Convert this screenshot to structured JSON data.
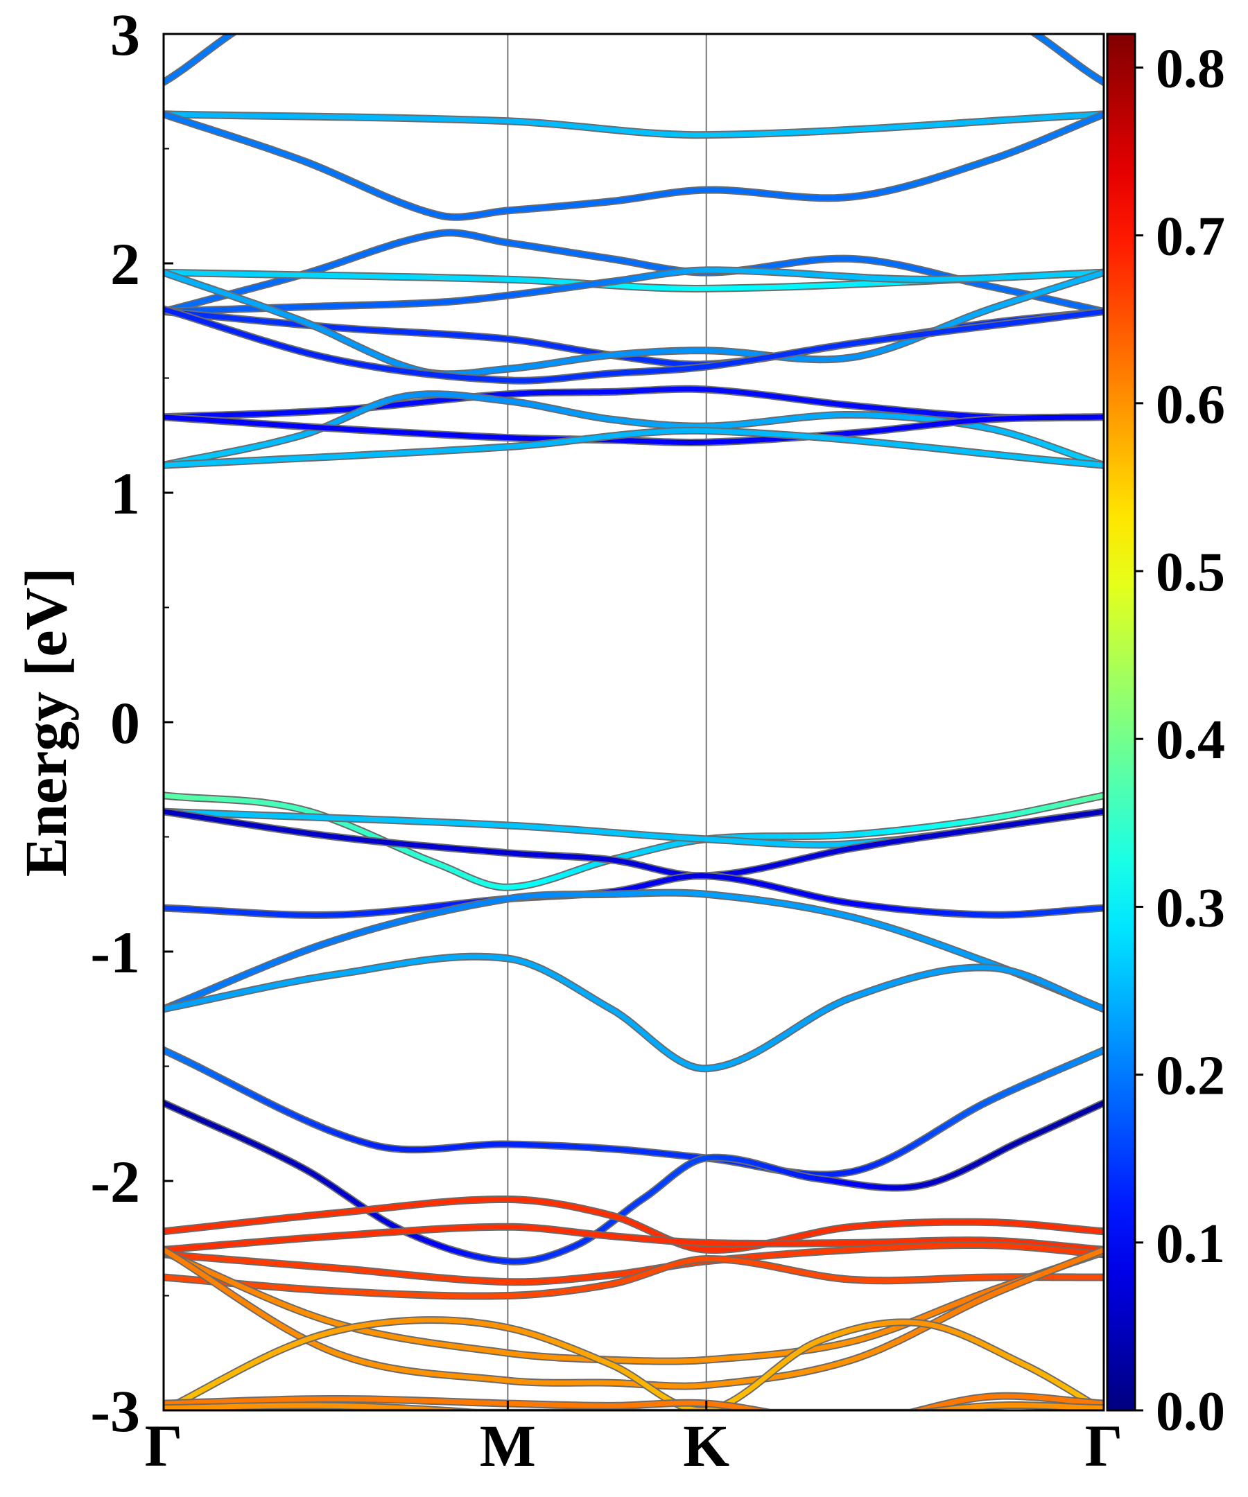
{
  "chart_data": {
    "type": "line",
    "title": "",
    "xlabel": "",
    "ylabel": "Energy [eV]",
    "ylim": [
      -3,
      3
    ],
    "x_path": [
      0,
      1,
      1.577,
      2.732
    ],
    "x_ticks": [
      {
        "x": 0,
        "label": "Γ"
      },
      {
        "x": 1,
        "label": "M"
      },
      {
        "x": 1.577,
        "label": "K"
      },
      {
        "x": 2.732,
        "label": "Γ"
      }
    ],
    "y_ticks": [
      {
        "v": 3,
        "label": "3"
      },
      {
        "v": 2,
        "label": "2"
      },
      {
        "v": 1,
        "label": "1"
      },
      {
        "v": 0,
        "label": "0"
      },
      {
        "v": -1,
        "label": "-1"
      },
      {
        "v": -2,
        "label": "-2"
      },
      {
        "v": -3,
        "label": "-3"
      }
    ],
    "y_minor_ticks": [
      2.5,
      1.5,
      0.5,
      -0.5,
      -1.5,
      -2.5
    ],
    "colorbar": {
      "colormap": "jet",
      "range": [
        0,
        0.82
      ],
      "ticks": [
        {
          "v": 0.0,
          "label": "0.0"
        },
        {
          "v": 0.1,
          "label": "0.1"
        },
        {
          "v": 0.2,
          "label": "0.2"
        },
        {
          "v": 0.3,
          "label": "0.3"
        },
        {
          "v": 0.4,
          "label": "0.4"
        },
        {
          "v": 0.5,
          "label": "0.5"
        },
        {
          "v": 0.6,
          "label": "0.6"
        },
        {
          "v": 0.7,
          "label": "0.7"
        },
        {
          "v": 0.8,
          "label": "0.8"
        }
      ]
    },
    "series": [
      {
        "k": [
          0,
          0.35,
          2.38,
          2.732
        ],
        "e": [
          2.79,
          3.1,
          3.1,
          2.79
        ],
        "w": [
          0.2,
          0.2,
          0.2,
          0.2
        ]
      },
      {
        "k": [
          0,
          1,
          1.577,
          2.732
        ],
        "e": [
          2.65,
          2.62,
          2.56,
          2.65
        ],
        "w": [
          0.25,
          0.25,
          0.26,
          0.25
        ]
      },
      {
        "k": [
          0,
          0.4,
          0.8,
          1,
          1.3,
          1.577,
          2.0,
          2.4,
          2.732
        ],
        "e": [
          2.65,
          2.45,
          2.21,
          2.23,
          2.27,
          2.32,
          2.29,
          2.45,
          2.65
        ],
        "w": [
          0.2,
          0.2,
          0.19,
          0.19,
          0.19,
          0.19,
          0.19,
          0.2,
          0.2
        ]
      },
      {
        "k": [
          0,
          0.4,
          0.8,
          1,
          1.3,
          1.577,
          2.0,
          2.4,
          2.732
        ],
        "e": [
          1.79,
          1.95,
          2.13,
          2.09,
          2.02,
          1.96,
          2.02,
          1.9,
          1.79
        ],
        "w": [
          0.19,
          0.19,
          0.19,
          0.19,
          0.19,
          0.19,
          0.19,
          0.19,
          0.19
        ]
      },
      {
        "k": [
          0,
          1,
          1.577,
          2.732
        ],
        "e": [
          1.96,
          1.93,
          1.89,
          1.96
        ],
        "w": [
          0.27,
          0.28,
          0.31,
          0.27
        ]
      },
      {
        "k": [
          0,
          0.4,
          0.8,
          1,
          1.3,
          1.577,
          2.2,
          2.732
        ],
        "e": [
          1.79,
          1.81,
          1.83,
          1.86,
          1.92,
          1.97,
          1.93,
          1.96
        ],
        "w": [
          0.18,
          0.18,
          0.18,
          0.18,
          0.2,
          0.24,
          0.26,
          0.27
        ]
      },
      {
        "k": [
          0,
          0.5,
          1,
          1.3,
          1.577,
          2.0,
          2.4,
          2.732
        ],
        "e": [
          1.79,
          1.72,
          1.67,
          1.6,
          1.56,
          1.65,
          1.74,
          1.79
        ],
        "w": [
          0.14,
          0.14,
          0.14,
          0.14,
          0.14,
          0.14,
          0.14,
          0.14
        ]
      },
      {
        "k": [
          0,
          0.4,
          0.75,
          1,
          1.3,
          1.577,
          2.0,
          2.4,
          2.732
        ],
        "e": [
          1.96,
          1.75,
          1.53,
          1.54,
          1.6,
          1.62,
          1.59,
          1.8,
          1.96
        ],
        "w": [
          0.25,
          0.23,
          0.22,
          0.22,
          0.22,
          0.22,
          0.22,
          0.24,
          0.25
        ]
      },
      {
        "k": [
          0,
          0.5,
          1,
          1.3,
          1.577,
          2.0,
          2.732
        ],
        "e": [
          1.8,
          1.58,
          1.49,
          1.52,
          1.55,
          1.65,
          1.79
        ],
        "w": [
          0.13,
          0.13,
          0.14,
          0.14,
          0.14,
          0.14,
          0.14
        ]
      },
      {
        "k": [
          0,
          0.5,
          1,
          1.3,
          1.577,
          2.0,
          2.4,
          2.732
        ],
        "e": [
          1.33,
          1.36,
          1.43,
          1.44,
          1.45,
          1.38,
          1.33,
          1.33
        ],
        "w": [
          0.11,
          0.11,
          0.11,
          0.11,
          0.11,
          0.11,
          0.11,
          0.11
        ]
      },
      {
        "k": [
          0,
          0.4,
          0.7,
          1,
          1.3,
          1.577,
          2.0,
          2.4,
          2.732
        ],
        "e": [
          1.12,
          1.25,
          1.42,
          1.4,
          1.32,
          1.29,
          1.34,
          1.28,
          1.12
        ],
        "w": [
          0.27,
          0.25,
          0.22,
          0.22,
          0.23,
          0.24,
          0.24,
          0.25,
          0.27
        ]
      },
      {
        "k": [
          0,
          0.5,
          1,
          1.3,
          1.577,
          2.0,
          2.4,
          2.732
        ],
        "e": [
          1.33,
          1.28,
          1.24,
          1.23,
          1.22,
          1.26,
          1.32,
          1.33
        ],
        "w": [
          0.1,
          0.1,
          0.1,
          0.1,
          0.1,
          0.1,
          0.1,
          0.1
        ]
      },
      {
        "k": [
          0,
          1,
          1.577,
          2.732
        ],
        "e": [
          1.12,
          1.2,
          1.27,
          1.12
        ],
        "w": [
          0.26,
          0.25,
          0.25,
          0.26
        ]
      },
      {
        "k": [
          0,
          0.4,
          0.8,
          1,
          1.3,
          1.577,
          2.0,
          2.4,
          2.732
        ],
        "e": [
          -0.32,
          -0.38,
          -0.62,
          -0.72,
          -0.6,
          -0.51,
          -0.49,
          -0.42,
          -0.32
        ],
        "w": [
          0.38,
          0.36,
          0.34,
          0.32,
          0.28,
          0.26,
          0.28,
          0.34,
          0.38
        ]
      },
      {
        "k": [
          0,
          1,
          1.577,
          2.0,
          2.732
        ],
        "e": [
          -0.39,
          -0.45,
          -0.51,
          -0.53,
          -0.39
        ],
        "w": [
          0.26,
          0.26,
          0.26,
          0.26,
          0.26
        ]
      },
      {
        "k": [
          0,
          0.5,
          1,
          1.3,
          1.577,
          2.0,
          2.4,
          2.732
        ],
        "e": [
          -0.39,
          -0.5,
          -0.57,
          -0.6,
          -0.67,
          -0.55,
          -0.46,
          -0.39
        ],
        "w": [
          0.05,
          0.06,
          0.07,
          0.07,
          0.08,
          0.07,
          0.06,
          0.05
        ]
      },
      {
        "k": [
          0,
          0.5,
          1,
          1.3,
          1.577,
          2.0,
          2.4,
          2.732
        ],
        "e": [
          -0.81,
          -0.84,
          -0.77,
          -0.74,
          -0.67,
          -0.79,
          -0.84,
          -0.81
        ],
        "w": [
          0.15,
          0.14,
          0.12,
          0.1,
          0.08,
          0.1,
          0.14,
          0.15
        ]
      },
      {
        "k": [
          0,
          0.5,
          1,
          1.3,
          1.577,
          2.0,
          2.4,
          2.732
        ],
        "e": [
          -1.25,
          -0.95,
          -0.77,
          -0.75,
          -0.75,
          -0.85,
          -1.05,
          -1.25
        ],
        "w": [
          0.2,
          0.2,
          0.21,
          0.22,
          0.23,
          0.23,
          0.23,
          0.22
        ]
      },
      {
        "k": [
          0,
          0.5,
          1,
          1.3,
          1.577,
          2.0,
          2.4,
          2.732
        ],
        "e": [
          -1.25,
          -1.1,
          -1.03,
          -1.25,
          -1.51,
          -1.2,
          -1.07,
          -1.25
        ],
        "w": [
          0.23,
          0.24,
          0.24,
          0.24,
          0.24,
          0.23,
          0.23,
          0.22
        ]
      },
      {
        "k": [
          0,
          0.6,
          1,
          1.3,
          1.577,
          2.0,
          2.4,
          2.732
        ],
        "e": [
          -1.43,
          -1.84,
          -1.84,
          -1.86,
          -1.9,
          -1.96,
          -1.65,
          -1.43
        ],
        "w": [
          0.2,
          0.13,
          0.13,
          0.14,
          0.14,
          0.13,
          0.18,
          0.22
        ]
      },
      {
        "k": [
          0,
          0.4,
          0.7,
          1,
          1.2,
          1.4,
          1.577,
          1.9,
          2.2,
          2.5,
          2.732
        ],
        "e": [
          -1.66,
          -1.94,
          -2.22,
          -2.35,
          -2.28,
          -2.07,
          -1.9,
          -1.99,
          -2.02,
          -1.82,
          -1.66
        ],
        "w": [
          0.03,
          0.05,
          0.08,
          0.14,
          0.14,
          0.15,
          0.16,
          0.12,
          0.06,
          0.04,
          0.03
        ]
      },
      {
        "k": [
          0,
          0.5,
          1,
          1.3,
          1.577,
          2.0,
          2.4,
          2.732
        ],
        "e": [
          -2.22,
          -2.14,
          -2.08,
          -2.15,
          -2.3,
          -2.2,
          -2.18,
          -2.22
        ],
        "w": [
          0.68,
          0.68,
          0.68,
          0.68,
          0.68,
          0.68,
          0.68,
          0.68
        ]
      },
      {
        "k": [
          0,
          0.5,
          1,
          1.3,
          1.577,
          2.0,
          2.4,
          2.732
        ],
        "e": [
          -2.3,
          -2.24,
          -2.2,
          -2.24,
          -2.27,
          -2.27,
          -2.26,
          -2.3
        ],
        "w": [
          0.68,
          0.68,
          0.68,
          0.68,
          0.68,
          0.68,
          0.68,
          0.68
        ]
      },
      {
        "k": [
          0,
          0.5,
          1,
          1.3,
          1.577,
          2.0,
          2.4,
          2.732
        ],
        "e": [
          -2.32,
          -2.38,
          -2.44,
          -2.41,
          -2.35,
          -2.3,
          -2.28,
          -2.32
        ],
        "w": [
          0.67,
          0.67,
          0.67,
          0.67,
          0.67,
          0.67,
          0.67,
          0.67
        ]
      },
      {
        "k": [
          0,
          0.5,
          1,
          1.3,
          1.577,
          2.0,
          2.4,
          2.732
        ],
        "e": [
          -2.42,
          -2.48,
          -2.5,
          -2.45,
          -2.34,
          -2.43,
          -2.42,
          -2.42
        ],
        "w": [
          0.66,
          0.66,
          0.66,
          0.66,
          0.66,
          0.66,
          0.66,
          0.66
        ]
      },
      {
        "k": [
          0,
          0.5,
          1,
          1.3,
          1.577,
          2.0,
          2.4,
          2.732
        ],
        "e": [
          -2.31,
          -2.62,
          -2.75,
          -2.78,
          -2.78,
          -2.7,
          -2.48,
          -2.31
        ],
        "w": [
          0.62,
          0.6,
          0.6,
          0.6,
          0.6,
          0.6,
          0.62,
          0.62
        ]
      },
      {
        "k": [
          0,
          0.5,
          1,
          1.3,
          1.577,
          2.0,
          2.4,
          2.732
        ],
        "e": [
          -2.3,
          -2.75,
          -2.87,
          -2.88,
          -2.89,
          -2.78,
          -2.5,
          -2.3
        ],
        "w": [
          0.62,
          0.6,
          0.6,
          0.6,
          0.6,
          0.6,
          0.62,
          0.62
        ]
      },
      {
        "k": [
          0,
          0.4,
          0.7,
          1,
          1.3,
          1.577,
          1.9,
          2.2,
          2.5,
          2.732
        ],
        "e": [
          -3.0,
          -2.7,
          -2.61,
          -2.64,
          -2.8,
          -3.0,
          -2.7,
          -2.62,
          -2.8,
          -3.0
        ],
        "w": [
          0.56,
          0.58,
          0.6,
          0.6,
          0.58,
          0.56,
          0.58,
          0.6,
          0.58,
          0.56
        ]
      },
      {
        "k": [
          0,
          0.5,
          1,
          1.3,
          1.577,
          2.0,
          2.4,
          2.732
        ],
        "e": [
          -2.97,
          -2.95,
          -2.97,
          -2.98,
          -2.97,
          -3.05,
          -2.94,
          -2.97
        ],
        "w": [
          0.62,
          0.62,
          0.62,
          0.62,
          0.62,
          0.62,
          0.62,
          0.62
        ]
      },
      {
        "k": [
          0,
          0.5,
          1,
          1.577,
          2.0,
          2.4,
          2.732
        ],
        "e": [
          -2.99,
          -2.98,
          -3.02,
          -3.1,
          -3.05,
          -2.98,
          -2.99
        ],
        "w": [
          0.6,
          0.6,
          0.6,
          0.6,
          0.6,
          0.6,
          0.6
        ]
      },
      {
        "k": [
          0.35,
          0.6,
          2.1,
          2.38
        ],
        "e": [
          -3.01,
          -3.01,
          -3.01,
          -3.01
        ],
        "w": [
          0.5,
          0.5,
          0.5,
          0.5
        ]
      }
    ]
  }
}
